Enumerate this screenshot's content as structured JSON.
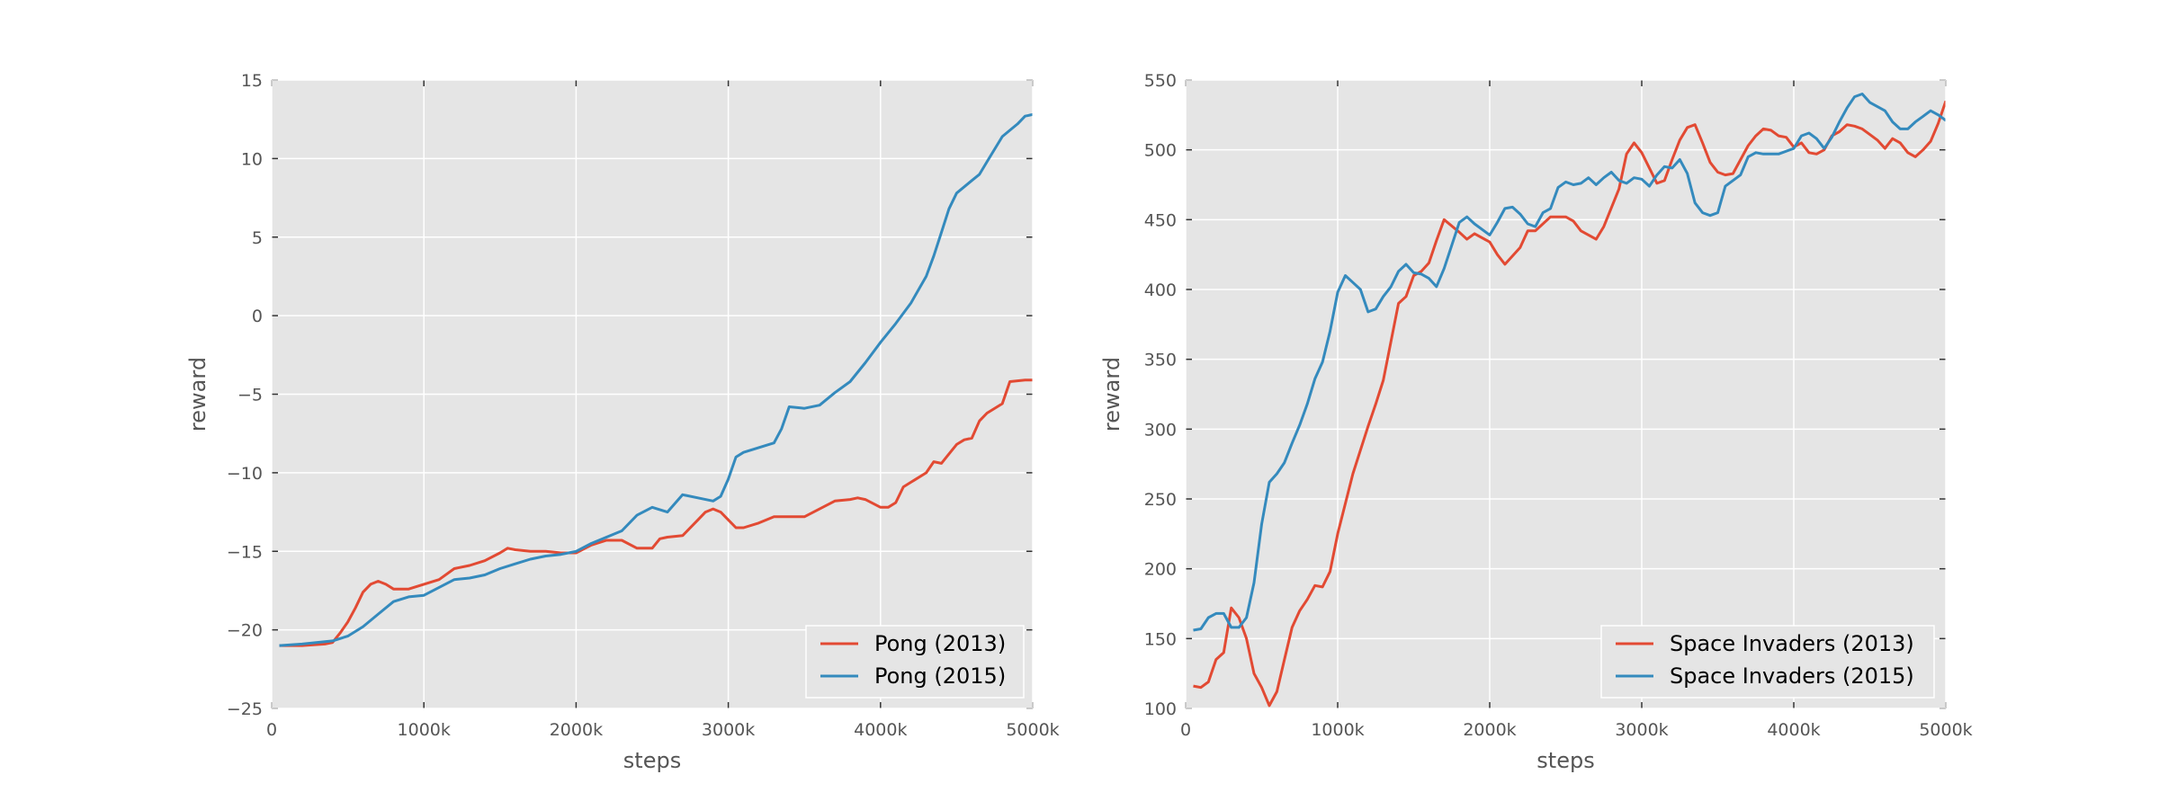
{
  "colors": {
    "background": "#E5E5E5",
    "grid": "#FFFFFF",
    "series_2013": "#E24A33",
    "series_2015": "#348ABD"
  },
  "chart_data": [
    {
      "type": "line",
      "xlabel": "steps",
      "ylabel": "reward",
      "xlim": [
        0,
        5000
      ],
      "ylim": [
        -25,
        15
      ],
      "xticks": [
        0,
        1000,
        2000,
        3000,
        4000,
        5000
      ],
      "xticklabels": [
        "0",
        "1000k",
        "2000k",
        "3000k",
        "4000k",
        "5000k"
      ],
      "yticks": [
        -25,
        -20,
        -15,
        -10,
        -5,
        0,
        5,
        10,
        15
      ],
      "yticklabels": [
        "−25",
        "−20",
        "−15",
        "−10",
        "−5",
        "0",
        "5",
        "10",
        "15"
      ],
      "grid": true,
      "legend_position": "lower-right",
      "series": [
        {
          "name": "Pong (2013)",
          "color": "#E24A33",
          "x": [
            50,
            200,
            350,
            400,
            450,
            500,
            550,
            600,
            650,
            700,
            750,
            800,
            850,
            900,
            1000,
            1100,
            1200,
            1300,
            1400,
            1500,
            1550,
            1600,
            1700,
            1800,
            1900,
            2000,
            2100,
            2200,
            2300,
            2400,
            2500,
            2550,
            2600,
            2700,
            2800,
            2850,
            2900,
            2950,
            3000,
            3050,
            3100,
            3200,
            3300,
            3400,
            3500,
            3600,
            3700,
            3800,
            3850,
            3900,
            4000,
            4050,
            4100,
            4150,
            4200,
            4300,
            4350,
            4400,
            4450,
            4500,
            4550,
            4600,
            4650,
            4700,
            4800,
            4850,
            4950,
            5000
          ],
          "y": [
            -21,
            -21,
            -20.9,
            -20.8,
            -20.2,
            -19.5,
            -18.6,
            -17.6,
            -17.1,
            -16.9,
            -17.1,
            -17.4,
            -17.4,
            -17.4,
            -17.1,
            -16.8,
            -16.1,
            -15.9,
            -15.6,
            -15.1,
            -14.8,
            -14.9,
            -15.0,
            -15.0,
            -15.1,
            -15.1,
            -14.6,
            -14.3,
            -14.3,
            -14.8,
            -14.8,
            -14.2,
            -14.1,
            -14.0,
            -13.0,
            -12.5,
            -12.3,
            -12.5,
            -13.0,
            -13.5,
            -13.5,
            -13.2,
            -12.8,
            -12.8,
            -12.8,
            -12.3,
            -11.8,
            -11.7,
            -11.6,
            -11.7,
            -12.2,
            -12.2,
            -11.9,
            -10.9,
            -10.6,
            -10.0,
            -9.3,
            -9.4,
            -8.8,
            -8.2,
            -7.9,
            -7.8,
            -6.7,
            -6.2,
            -5.6,
            -4.2,
            -4.1,
            -4.1
          ]
        },
        {
          "name": "Pong (2015)",
          "color": "#348ABD",
          "x": [
            50,
            200,
            400,
            500,
            600,
            700,
            800,
            900,
            1000,
            1100,
            1200,
            1300,
            1400,
            1500,
            1600,
            1700,
            1800,
            1900,
            2000,
            2100,
            2200,
            2300,
            2400,
            2500,
            2600,
            2700,
            2800,
            2900,
            2950,
            3000,
            3050,
            3100,
            3200,
            3300,
            3350,
            3400,
            3500,
            3600,
            3700,
            3800,
            3900,
            4000,
            4100,
            4200,
            4300,
            4350,
            4400,
            4450,
            4500,
            4600,
            4650,
            4700,
            4800,
            4850,
            4900,
            4950,
            5000
          ],
          "y": [
            -21,
            -20.9,
            -20.7,
            -20.4,
            -19.8,
            -19.0,
            -18.2,
            -17.9,
            -17.8,
            -17.3,
            -16.8,
            -16.7,
            -16.5,
            -16.1,
            -15.8,
            -15.5,
            -15.3,
            -15.2,
            -15.0,
            -14.5,
            -14.1,
            -13.7,
            -12.7,
            -12.2,
            -12.5,
            -11.4,
            -11.6,
            -11.8,
            -11.5,
            -10.4,
            -9.0,
            -8.7,
            -8.4,
            -8.1,
            -7.2,
            -5.8,
            -5.9,
            -5.7,
            -4.9,
            -4.2,
            -3.0,
            -1.7,
            -0.5,
            0.8,
            2.5,
            3.8,
            5.3,
            6.8,
            7.8,
            8.6,
            9.0,
            9.8,
            11.4,
            11.8,
            12.2,
            12.7,
            12.8
          ]
        }
      ]
    },
    {
      "type": "line",
      "xlabel": "steps",
      "ylabel": "reward",
      "xlim": [
        0,
        5000
      ],
      "ylim": [
        100,
        550
      ],
      "xticks": [
        0,
        1000,
        2000,
        3000,
        4000,
        5000
      ],
      "xticklabels": [
        "0",
        "1000k",
        "2000k",
        "3000k",
        "4000k",
        "5000k"
      ],
      "yticks": [
        100,
        150,
        200,
        250,
        300,
        350,
        400,
        450,
        500,
        550
      ],
      "yticklabels": [
        "100",
        "150",
        "200",
        "250",
        "300",
        "350",
        "400",
        "450",
        "500",
        "550"
      ],
      "grid": true,
      "legend_position": "lower-right",
      "series": [
        {
          "name": "Space Invaders (2013)",
          "color": "#E24A33",
          "x": [
            50,
            100,
            150,
            200,
            250,
            300,
            350,
            400,
            450,
            500,
            550,
            600,
            650,
            700,
            750,
            800,
            850,
            900,
            950,
            1000,
            1100,
            1200,
            1250,
            1300,
            1400,
            1450,
            1500,
            1550,
            1600,
            1650,
            1700,
            1800,
            1850,
            1900,
            2000,
            2050,
            2100,
            2200,
            2250,
            2300,
            2400,
            2500,
            2550,
            2600,
            2700,
            2750,
            2850,
            2900,
            2950,
            3000,
            3050,
            3100,
            3150,
            3200,
            3250,
            3300,
            3350,
            3400,
            3450,
            3500,
            3550,
            3600,
            3700,
            3750,
            3800,
            3850,
            3900,
            3950,
            4000,
            4050,
            4100,
            4150,
            4200,
            4250,
            4300,
            4350,
            4400,
            4450,
            4500,
            4550,
            4600,
            4650,
            4700,
            4750,
            4800,
            4850,
            4900,
            4950,
            5000
          ],
          "y": [
            116,
            115,
            119,
            135,
            140,
            172,
            165,
            150,
            125,
            115,
            102,
            112,
            135,
            158,
            170,
            178,
            188,
            187,
            198,
            225,
            268,
            302,
            318,
            335,
            390,
            395,
            410,
            413,
            419,
            435,
            450,
            441,
            436,
            440,
            434,
            425,
            418,
            430,
            442,
            442,
            452,
            452,
            449,
            442,
            436,
            445,
            472,
            497,
            505,
            498,
            487,
            476,
            478,
            493,
            507,
            516,
            518,
            505,
            491,
            484,
            482,
            483,
            503,
            510,
            515,
            514,
            510,
            509,
            502,
            505,
            498,
            497,
            500,
            510,
            513,
            518,
            517,
            515,
            511,
            507,
            501,
            508,
            505,
            498,
            495,
            500,
            506,
            519,
            535
          ]
        },
        {
          "name": "Space Invaders (2015)",
          "color": "#348ABD",
          "x": [
            50,
            100,
            150,
            200,
            250,
            300,
            350,
            400,
            450,
            500,
            550,
            600,
            650,
            700,
            750,
            800,
            850,
            900,
            950,
            1000,
            1050,
            1100,
            1150,
            1200,
            1250,
            1300,
            1350,
            1400,
            1450,
            1500,
            1550,
            1600,
            1650,
            1700,
            1800,
            1850,
            1900,
            2000,
            2050,
            2100,
            2150,
            2200,
            2250,
            2300,
            2350,
            2400,
            2450,
            2500,
            2550,
            2600,
            2650,
            2700,
            2750,
            2800,
            2850,
            2900,
            2950,
            3000,
            3050,
            3100,
            3150,
            3200,
            3250,
            3300,
            3350,
            3400,
            3450,
            3500,
            3550,
            3600,
            3650,
            3700,
            3750,
            3800,
            3850,
            3900,
            4000,
            4050,
            4100,
            4150,
            4200,
            4250,
            4300,
            4350,
            4400,
            4450,
            4500,
            4600,
            4650,
            4700,
            4750,
            4800,
            4850,
            4900,
            4950,
            5000
          ],
          "y": [
            156,
            157,
            165,
            168,
            168,
            158,
            158,
            165,
            190,
            232,
            262,
            268,
            276,
            290,
            303,
            318,
            336,
            348,
            370,
            398,
            410,
            405,
            400,
            384,
            386,
            395,
            402,
            413,
            418,
            412,
            411,
            408,
            402,
            415,
            448,
            452,
            447,
            439,
            448,
            458,
            459,
            454,
            447,
            445,
            455,
            458,
            473,
            477,
            475,
            476,
            480,
            475,
            480,
            484,
            478,
            476,
            480,
            479,
            474,
            482,
            488,
            487,
            493,
            483,
            462,
            455,
            453,
            455,
            474,
            478,
            482,
            495,
            498,
            497,
            497,
            497,
            501,
            510,
            512,
            508,
            501,
            509,
            520,
            530,
            538,
            540,
            534,
            528,
            520,
            515,
            515,
            520,
            524,
            528,
            525,
            521
          ]
        }
      ]
    }
  ]
}
